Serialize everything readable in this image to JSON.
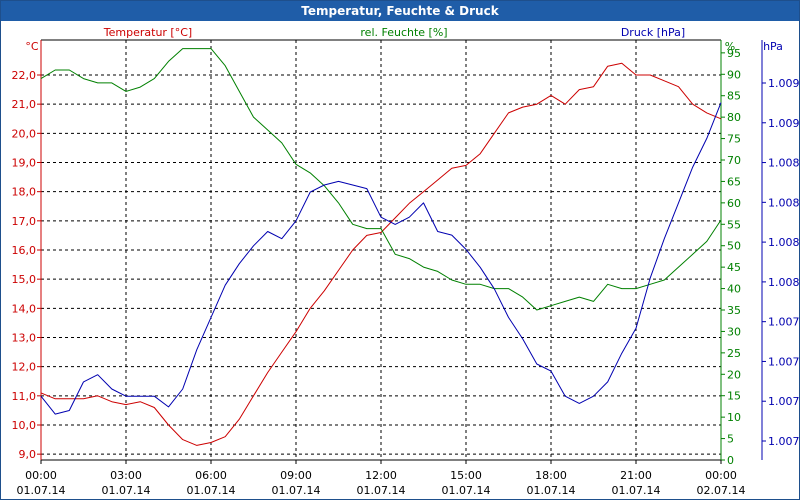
{
  "window": {
    "title": "Temperatur, Feuchte & Druck"
  },
  "colors": {
    "temperature": "#cc0000",
    "humidity": "#008000",
    "pressure": "#0000b0",
    "grid": "#000000",
    "frame": "#1f5da8"
  },
  "chart_data": {
    "type": "line",
    "title": "Temperatur, Feuchte & Druck",
    "grid": true,
    "x_ticks": [
      {
        "time": "00:00",
        "date": "01.07.14"
      },
      {
        "time": "03:00",
        "date": "01.07.14"
      },
      {
        "time": "06:00",
        "date": "01.07.14"
      },
      {
        "time": "09:00",
        "date": "01.07.14"
      },
      {
        "time": "12:00",
        "date": "01.07.14"
      },
      {
        "time": "15:00",
        "date": "01.07.14"
      },
      {
        "time": "18:00",
        "date": "01.07.14"
      },
      {
        "time": "21:00",
        "date": "01.07.14"
      },
      {
        "time": "00:00",
        "date": "02.07.14"
      }
    ],
    "x_hours": [
      0,
      0.5,
      1,
      1.5,
      2,
      2.5,
      3,
      3.5,
      4,
      4.5,
      5,
      5.5,
      6,
      6.5,
      7,
      7.5,
      8,
      8.5,
      9,
      9.5,
      10,
      10.5,
      11,
      11.5,
      12,
      12.5,
      13,
      13.5,
      14,
      14.5,
      15,
      15.5,
      16,
      16.5,
      17,
      17.5,
      18,
      18.5,
      19,
      19.5,
      20,
      20.5,
      21,
      21.5,
      22,
      22.5,
      23,
      23.5,
      24
    ],
    "axes": {
      "temperature": {
        "label": "Temperatur [°C]",
        "unit": "°C",
        "ylim": [
          8.8,
          23.2
        ],
        "ticks": [
          "9,0",
          "10,0",
          "11,0",
          "12,0",
          "13,0",
          "14,0",
          "15,0",
          "16,0",
          "17,0",
          "18,0",
          "19,0",
          "20,0",
          "21,0",
          "22,0"
        ]
      },
      "humidity": {
        "label": "rel. Feuchte [%]",
        "unit": "%",
        "ylim": [
          0,
          98
        ],
        "ticks": [
          "0",
          "5",
          "10",
          "15",
          "20",
          "25",
          "30",
          "35",
          "40",
          "45",
          "50",
          "55",
          "60",
          "65",
          "70",
          "75",
          "80",
          "85",
          "90",
          "95"
        ]
      },
      "pressure": {
        "label": "Druck [hPa]",
        "unit": "hPa",
        "ticks": [
          "1.007",
          "1.007",
          "1.007",
          "1.007",
          "1.008",
          "1.008",
          "1.008",
          "1.008",
          "1.009",
          "1.009"
        ]
      }
    },
    "series": [
      {
        "name": "Temperatur [°C]",
        "axis": "temperature",
        "values": [
          11.1,
          10.9,
          10.9,
          10.9,
          11.0,
          10.8,
          10.7,
          10.8,
          10.6,
          10.0,
          9.5,
          9.3,
          9.4,
          9.6,
          10.2,
          11.0,
          11.8,
          12.5,
          13.2,
          14.0,
          14.6,
          15.3,
          16.0,
          16.5,
          16.6,
          17.1,
          17.6,
          18.0,
          18.4,
          18.8,
          18.9,
          19.3,
          20.0,
          20.7,
          20.9,
          21.0,
          21.3,
          21.0,
          21.5,
          21.6,
          22.3,
          22.4,
          22.0,
          22.0,
          21.8,
          21.6,
          21.0,
          20.7,
          20.5
        ]
      },
      {
        "name": "rel. Feuchte [%]",
        "axis": "humidity",
        "values": [
          89,
          91,
          91,
          89,
          88,
          88,
          86,
          87,
          89,
          93,
          96,
          96,
          96,
          92,
          86,
          80,
          77,
          74,
          69,
          67,
          64,
          60,
          55,
          54,
          54,
          48,
          47,
          45,
          44,
          42,
          41,
          41,
          40,
          40,
          38,
          35,
          36,
          37,
          38,
          37,
          41,
          40,
          40,
          41,
          42,
          45,
          48,
          51,
          56
        ]
      },
      {
        "name": "Druck [hPa]",
        "axis": "pressure",
        "values": [
          0.1,
          0.05,
          0.06,
          0.14,
          0.16,
          0.12,
          0.1,
          0.1,
          0.1,
          0.07,
          0.12,
          0.23,
          0.32,
          0.41,
          0.47,
          0.52,
          0.56,
          0.54,
          0.59,
          0.67,
          0.69,
          0.7,
          0.69,
          0.68,
          0.6,
          0.58,
          0.6,
          0.64,
          0.56,
          0.55,
          0.51,
          0.46,
          0.4,
          0.32,
          0.26,
          0.19,
          0.17,
          0.1,
          0.08,
          0.1,
          0.14,
          0.22,
          0.29,
          0.43,
          0.54,
          0.64,
          0.74,
          0.82,
          0.92
        ]
      }
    ]
  }
}
